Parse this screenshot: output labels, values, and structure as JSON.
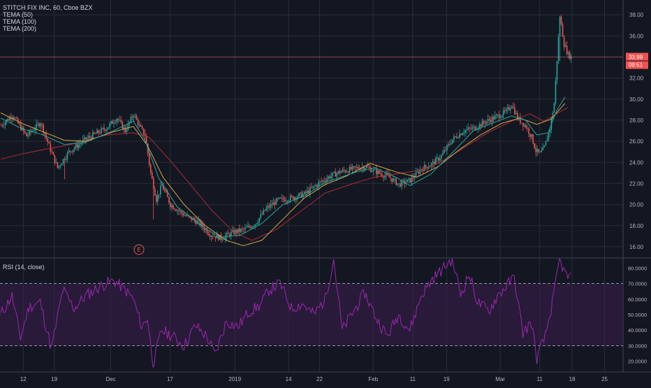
{
  "header": {
    "symbol_line": "STITCH FIX INC, 60, Cboe BZX",
    "indicators": [
      "TEMA (50)",
      "TEMA (100)",
      "TEMA (200)"
    ]
  },
  "price_label": {
    "value": "33.99",
    "countdown": "09:51"
  },
  "earnings_marker": "E",
  "rsi_header": "RSI (14, close)",
  "colors": {
    "background": "#131722",
    "grid": "#2a2e39",
    "axis_text": "#b2b5be",
    "up": "#26a69a",
    "down": "#ef5350",
    "tema50": "#26a69a",
    "tema100": "#d4a94c",
    "tema200": "#b22833",
    "rsi_line": "#9c27b0",
    "rsi_band": "#3b1d4a",
    "price_line": "#ef5350"
  },
  "chart_data": [
    {
      "type": "candlestick",
      "title": "STITCH FIX INC, 60, Cboe BZX",
      "x_tick_labels": [
        "12",
        "19",
        "Dec",
        "17",
        "2019",
        "14",
        "22",
        "Feb",
        "11",
        "19",
        "Mar",
        "11",
        "18",
        "25"
      ],
      "y_tick_labels": [
        "38.00",
        "36.00",
        "34.00",
        "32.00",
        "30.00",
        "28.00",
        "26.00",
        "24.00",
        "22.00",
        "20.00",
        "18.00",
        "16.00"
      ],
      "ylim": [
        15.0,
        39.0
      ],
      "last_price": 33.99,
      "price_anchors": [
        [
          0,
          27.5
        ],
        [
          8,
          28.5
        ],
        [
          18,
          26.5
        ],
        [
          28,
          27.8
        ],
        [
          35,
          25.2
        ],
        [
          40,
          23.5
        ],
        [
          48,
          25.0
        ],
        [
          60,
          26.2
        ],
        [
          75,
          27.3
        ],
        [
          82,
          28.2
        ],
        [
          88,
          27.0
        ],
        [
          94,
          28.6
        ],
        [
          98,
          27.4
        ],
        [
          102,
          26.6
        ],
        [
          106,
          23.0
        ],
        [
          110,
          20.5
        ],
        [
          114,
          21.8
        ],
        [
          120,
          20.0
        ],
        [
          130,
          19.0
        ],
        [
          140,
          18.3
        ],
        [
          148,
          17.2
        ],
        [
          156,
          16.8
        ],
        [
          165,
          17.4
        ],
        [
          172,
          17.6
        ],
        [
          180,
          18.2
        ],
        [
          188,
          19.6
        ],
        [
          196,
          20.4
        ],
        [
          205,
          20.6
        ],
        [
          215,
          21.0
        ],
        [
          225,
          22.0
        ],
        [
          232,
          22.6
        ],
        [
          240,
          23.1
        ],
        [
          250,
          23.4
        ],
        [
          258,
          23.6
        ],
        [
          266,
          23.1
        ],
        [
          275,
          22.6
        ],
        [
          282,
          21.9
        ],
        [
          290,
          22.3
        ],
        [
          298,
          23.4
        ],
        [
          305,
          23.8
        ],
        [
          312,
          24.6
        ],
        [
          320,
          26.2
        ],
        [
          328,
          27.0
        ],
        [
          336,
          27.3
        ],
        [
          344,
          27.9
        ],
        [
          352,
          28.4
        ],
        [
          358,
          28.8
        ],
        [
          362,
          29.5
        ],
        [
          366,
          28.2
        ],
        [
          372,
          27.4
        ],
        [
          376,
          26.4
        ],
        [
          379,
          25.1
        ],
        [
          382,
          24.8
        ],
        [
          385,
          25.4
        ],
        [
          389,
          27.2
        ],
        [
          392,
          29.6
        ],
        [
          396,
          37.9
        ],
        [
          399,
          35.2
        ],
        [
          402,
          34.2
        ],
        [
          404,
          33.99
        ]
      ],
      "tema_50_anchors": [
        [
          0,
          28.2
        ],
        [
          15,
          27.2
        ],
        [
          30,
          26.6
        ],
        [
          45,
          25.7
        ],
        [
          60,
          25.9
        ],
        [
          80,
          27.0
        ],
        [
          94,
          27.9
        ],
        [
          102,
          26.2
        ],
        [
          112,
          22.5
        ],
        [
          125,
          19.8
        ],
        [
          140,
          18.2
        ],
        [
          155,
          16.9
        ],
        [
          170,
          17.1
        ],
        [
          185,
          18.2
        ],
        [
          200,
          20.0
        ],
        [
          215,
          20.8
        ],
        [
          230,
          22.1
        ],
        [
          250,
          23.0
        ],
        [
          265,
          23.5
        ],
        [
          280,
          22.6
        ],
        [
          290,
          21.8
        ],
        [
          305,
          22.9
        ],
        [
          320,
          24.9
        ],
        [
          335,
          27.0
        ],
        [
          350,
          27.8
        ],
        [
          362,
          28.4
        ],
        [
          372,
          28.0
        ],
        [
          380,
          26.6
        ],
        [
          388,
          26.8
        ],
        [
          394,
          28.9
        ],
        [
          400,
          30.2
        ]
      ],
      "tema_100_anchors": [
        [
          0,
          28.7
        ],
        [
          15,
          27.7
        ],
        [
          30,
          26.9
        ],
        [
          45,
          26.1
        ],
        [
          60,
          26.0
        ],
        [
          80,
          26.9
        ],
        [
          94,
          27.4
        ],
        [
          104,
          25.6
        ],
        [
          115,
          22.6
        ],
        [
          130,
          20.0
        ],
        [
          145,
          18.0
        ],
        [
          160,
          16.6
        ],
        [
          172,
          16.1
        ],
        [
          185,
          16.6
        ],
        [
          200,
          18.6
        ],
        [
          215,
          20.6
        ],
        [
          230,
          21.9
        ],
        [
          245,
          22.7
        ],
        [
          262,
          23.9
        ],
        [
          280,
          23.1
        ],
        [
          295,
          22.6
        ],
        [
          310,
          23.6
        ],
        [
          325,
          25.2
        ],
        [
          340,
          26.6
        ],
        [
          355,
          27.7
        ],
        [
          368,
          28.2
        ],
        [
          380,
          27.6
        ],
        [
          390,
          28.1
        ],
        [
          400,
          29.6
        ]
      ],
      "tema_200_anchors": [
        [
          0,
          24.3
        ],
        [
          15,
          24.8
        ],
        [
          30,
          25.2
        ],
        [
          50,
          25.7
        ],
        [
          75,
          26.6
        ],
        [
          94,
          26.8
        ],
        [
          105,
          26.4
        ],
        [
          120,
          24.2
        ],
        [
          135,
          21.8
        ],
        [
          150,
          19.4
        ],
        [
          165,
          17.4
        ],
        [
          178,
          16.6
        ],
        [
          195,
          17.6
        ],
        [
          215,
          19.6
        ],
        [
          230,
          21.1
        ],
        [
          250,
          22.0
        ],
        [
          265,
          22.6
        ],
        [
          280,
          22.9
        ],
        [
          295,
          23.2
        ],
        [
          310,
          23.9
        ],
        [
          325,
          25.1
        ],
        [
          345,
          26.8
        ],
        [
          362,
          27.9
        ],
        [
          375,
          28.6
        ],
        [
          385,
          27.9
        ],
        [
          395,
          28.7
        ],
        [
          402,
          29.2
        ]
      ]
    },
    {
      "type": "line",
      "title": "RSI (14, close)",
      "y_tick_labels": [
        "80.0000",
        "70.0000",
        "60.0000",
        "50.0000",
        "40.0000",
        "30.0000",
        "20.0000"
      ],
      "ylim": [
        14.0,
        86.0
      ],
      "band": [
        30,
        70
      ],
      "rsi_anchors": [
        [
          0,
          50
        ],
        [
          8,
          62
        ],
        [
          14,
          35
        ],
        [
          20,
          55
        ],
        [
          28,
          58
        ],
        [
          36,
          28
        ],
        [
          44,
          66
        ],
        [
          52,
          54
        ],
        [
          60,
          62
        ],
        [
          70,
          68
        ],
        [
          80,
          72
        ],
        [
          88,
          66
        ],
        [
          94,
          60
        ],
        [
          100,
          42
        ],
        [
          104,
          48
        ],
        [
          108,
          18
        ],
        [
          114,
          40
        ],
        [
          122,
          36
        ],
        [
          130,
          30
        ],
        [
          138,
          43
        ],
        [
          146,
          36
        ],
        [
          152,
          24
        ],
        [
          160,
          46
        ],
        [
          168,
          42
        ],
        [
          176,
          52
        ],
        [
          184,
          56
        ],
        [
          190,
          66
        ],
        [
          198,
          70
        ],
        [
          206,
          54
        ],
        [
          214,
          57
        ],
        [
          222,
          50
        ],
        [
          230,
          60
        ],
        [
          236,
          86
        ],
        [
          242,
          40
        ],
        [
          250,
          52
        ],
        [
          258,
          64
        ],
        [
          266,
          48
        ],
        [
          274,
          36
        ],
        [
          282,
          50
        ],
        [
          290,
          40
        ],
        [
          298,
          62
        ],
        [
          306,
          73
        ],
        [
          314,
          80
        ],
        [
          320,
          86
        ],
        [
          326,
          63
        ],
        [
          332,
          76
        ],
        [
          338,
          58
        ],
        [
          346,
          52
        ],
        [
          352,
          62
        ],
        [
          358,
          68
        ],
        [
          364,
          74
        ],
        [
          370,
          38
        ],
        [
          376,
          45
        ],
        [
          380,
          22
        ],
        [
          386,
          36
        ],
        [
          392,
          62
        ],
        [
          396,
          86
        ],
        [
          400,
          76
        ],
        [
          404,
          73
        ]
      ]
    }
  ]
}
